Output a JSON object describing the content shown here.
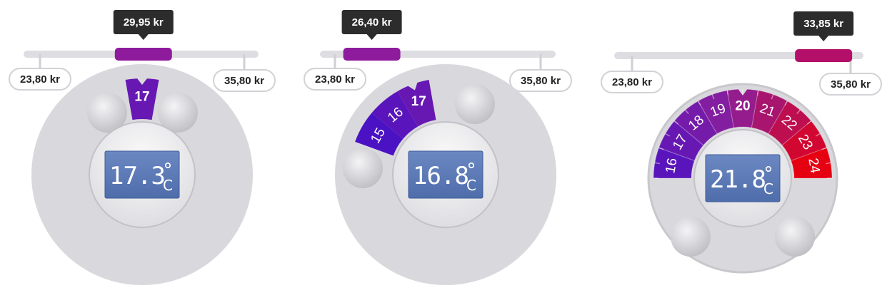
{
  "colors": {
    "dial_bg": "#d9d9dd",
    "track": "#dedee2",
    "lcd_bg": "#5a79b5",
    "tooltip_bg": "#2c2c2c",
    "cold": "#4b12c4",
    "mid": "#8a1f9c",
    "warm": "#e50012"
  },
  "widgets": [
    {
      "price_min": "23,80 kr",
      "price_max": "35,80 kr",
      "price_current": "29,95 kr",
      "price_fraction": 0.51,
      "reading_digits": "17.3",
      "reading_degree": "°",
      "reading_unit": "C",
      "segments": [
        "17"
      ],
      "selected": "17"
    },
    {
      "price_min": "23,80 kr",
      "price_max": "35,80 kr",
      "price_current": "26,40 kr",
      "price_fraction": 0.22,
      "reading_digits": "16.8",
      "reading_degree": "°",
      "reading_unit": "C",
      "segments": [
        "15",
        "16",
        "17"
      ],
      "selected": "17"
    },
    {
      "price_min": "23,80 kr",
      "price_max": "35,80 kr",
      "price_current": "33,85 kr",
      "price_fraction": 0.84,
      "reading_digits": "21.8",
      "reading_degree": "°",
      "reading_unit": "C",
      "segments": [
        "16",
        "17",
        "18",
        "19",
        "20",
        "21",
        "22",
        "23",
        "24"
      ],
      "selected": "20"
    }
  ]
}
